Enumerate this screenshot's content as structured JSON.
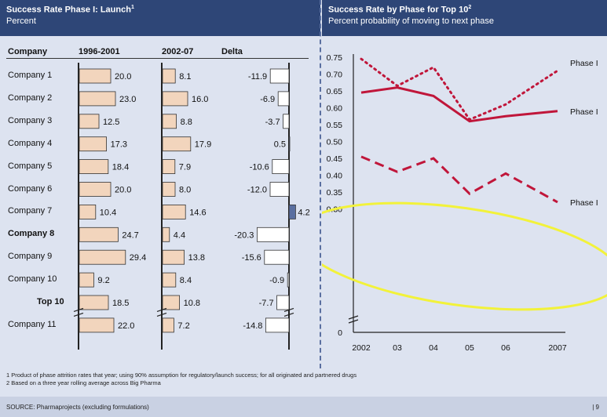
{
  "left_panel": {
    "title": "Success Rate Phase I: Launch",
    "title_sup": "1",
    "subtitle": "Percent"
  },
  "right_panel": {
    "title": "Success Rate by Phase for Top 10",
    "title_sup": "2",
    "subtitle": "Percent probability of moving to next phase"
  },
  "footnotes": [
    "1 Product of phase attrition rates that year; using 90% assumption for regulatory/launch success; for all originated and partnered drugs",
    "2 Based on a three year rolling average across Big Pharma"
  ],
  "source": "SOURCE: Pharmaprojects (excluding formulations)",
  "page_number": "| 9",
  "colors": {
    "bar_fill": "#f2d5bd",
    "delta_fill": "#ffffff",
    "delta_positive_fill": "#5a6fa0",
    "line_color": "#c0163a",
    "highlight": "#f2f23a",
    "header_bg": "#2e4677"
  },
  "chart_data": [
    {
      "type": "table",
      "columns": [
        "Company",
        "1996-2001",
        "2002-07",
        "Delta"
      ],
      "rows": [
        {
          "company": "Company 1",
          "bold": false,
          "p1": 20.0,
          "p1_label": "20.0",
          "p2": 8.1,
          "p2_label": "8.1",
          "delta": -11.9,
          "delta_label": "-11.9"
        },
        {
          "company": "Company 2",
          "bold": false,
          "p1": 23.0,
          "p1_label": "23.0",
          "p2": 16.0,
          "p2_label": "16.0",
          "delta": -6.9,
          "delta_label": "-6.9"
        },
        {
          "company": "Company 3",
          "bold": false,
          "p1": 12.5,
          "p1_label": "12.5",
          "p2": 8.8,
          "p2_label": "8.8",
          "delta": -3.7,
          "delta_label": "-3.7"
        },
        {
          "company": "Company 4",
          "bold": false,
          "p1": 17.3,
          "p1_label": "17.3",
          "p2": 17.9,
          "p2_label": "17.9",
          "delta": 0.5,
          "delta_label": "0.5"
        },
        {
          "company": "Company 5",
          "bold": false,
          "p1": 18.4,
          "p1_label": "18.4",
          "p2": 7.9,
          "p2_label": "7.9",
          "delta": -10.6,
          "delta_label": "-10.6"
        },
        {
          "company": "Company 6",
          "bold": false,
          "p1": 20.0,
          "p1_label": "20.0",
          "p2": 8.0,
          "p2_label": "8.0",
          "delta": -12.0,
          "delta_label": "-12.0"
        },
        {
          "company": "Company 7",
          "bold": false,
          "p1": 10.4,
          "p1_label": "10.4",
          "p2": 14.6,
          "p2_label": "14.6",
          "delta": 4.2,
          "delta_label": "4.2"
        },
        {
          "company": "Company 8",
          "bold": true,
          "p1": 24.7,
          "p1_label": "24.7",
          "p2": 4.4,
          "p2_label": "4.4",
          "delta": -20.3,
          "delta_label": "-20.3"
        },
        {
          "company": "Company 9",
          "bold": false,
          "p1": 29.4,
          "p1_label": "29.4",
          "p2": 13.8,
          "p2_label": "13.8",
          "delta": -15.6,
          "delta_label": "-15.6"
        },
        {
          "company": "Company 10",
          "bold": false,
          "p1": 9.2,
          "p1_label": "9.2",
          "p2": 8.4,
          "p2_label": "8.4",
          "delta": -0.9,
          "delta_label": "-0.9"
        },
        {
          "company": "Top 10",
          "bold": true,
          "p1": 18.5,
          "p1_label": "18.5",
          "p2": 10.8,
          "p2_label": "10.8",
          "delta": -7.7,
          "delta_label": "-7.7"
        },
        {
          "company": "Company 11",
          "bold": false,
          "p1": 22.0,
          "p1_label": "22.0",
          "p2": 7.2,
          "p2_label": "7.2",
          "delta": -14.8,
          "delta_label": "-14.8"
        }
      ]
    },
    {
      "type": "line",
      "x": [
        "2002",
        "03",
        "04",
        "05",
        "06",
        "2007"
      ],
      "ylim": [
        0,
        0.75
      ],
      "y_ticks": [
        "0.75",
        "0.70",
        "0.65",
        "0.60",
        "0.55",
        "0.50",
        "0.45",
        "0.40",
        "0.35",
        "0.30",
        "0"
      ],
      "grid": false,
      "series": [
        {
          "name": "Phase I",
          "style": "dotted",
          "values": [
            0.745,
            0.665,
            0.72,
            0.565,
            0.61,
            0.71
          ]
        },
        {
          "name": "Phase I",
          "style": "solid",
          "values": [
            0.645,
            0.66,
            0.635,
            0.56,
            0.575,
            0.59
          ]
        },
        {
          "name": "Phase I",
          "style": "dashed",
          "values": [
            0.455,
            0.41,
            0.45,
            0.345,
            0.405,
            0.32
          ]
        }
      ]
    }
  ]
}
